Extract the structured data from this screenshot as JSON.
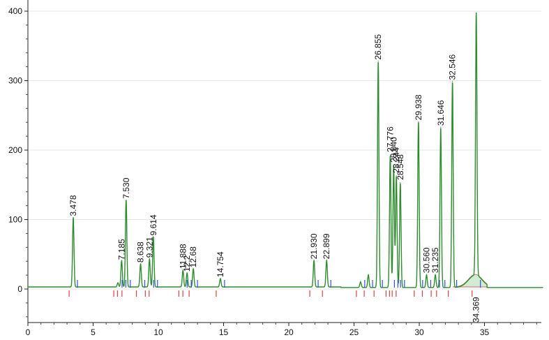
{
  "chart_data": {
    "type": "line",
    "title": "",
    "xlabel": "",
    "ylabel": "",
    "xlim": [
      0,
      39.5
    ],
    "ylim": [
      -45,
      410
    ],
    "x_ticks": [
      0,
      5,
      10,
      15,
      20,
      25,
      30,
      35
    ],
    "y_ticks": [
      0,
      100,
      200,
      300,
      400
    ],
    "x_tick_labels": [
      "0",
      "5",
      "10",
      "15",
      "20",
      "25",
      "30",
      "35"
    ],
    "y_tick_labels": [
      "0",
      "100",
      "200",
      "300",
      "400"
    ],
    "baseline": 3,
    "line_color": "#2e8b2e",
    "fill_color": "#cfe8cf",
    "peaks": [
      {
        "t": 3.478,
        "h": 100,
        "label": "3.478",
        "labeled": true
      },
      {
        "t": 6.9,
        "h": 6,
        "label": "",
        "labeled": false
      },
      {
        "t": 7.185,
        "h": 38,
        "label": "7.185",
        "labeled": true
      },
      {
        "t": 7.53,
        "h": 125,
        "label": "7.530",
        "labeled": true
      },
      {
        "t": 8.638,
        "h": 33,
        "label": "8.638",
        "labeled": true
      },
      {
        "t": 9.321,
        "h": 40,
        "label": "9.321",
        "labeled": true
      },
      {
        "t": 9.614,
        "h": 72,
        "label": "9.614",
        "labeled": true
      },
      {
        "t": 11.888,
        "h": 24,
        "label": "11.888",
        "labeled": true
      },
      {
        "t": 12.2,
        "h": 20,
        "label": "12.2",
        "labeled": true
      },
      {
        "t": 12.68,
        "h": 26,
        "label": "12.68",
        "labeled": true
      },
      {
        "t": 14.754,
        "h": 12,
        "label": "14.754",
        "labeled": true
      },
      {
        "t": 21.93,
        "h": 38,
        "label": "21.930",
        "labeled": true
      },
      {
        "t": 22.899,
        "h": 38,
        "label": "22.899",
        "labeled": true
      },
      {
        "t": 25.5,
        "h": 8,
        "label": "",
        "labeled": false
      },
      {
        "t": 26.1,
        "h": 18,
        "label": "",
        "labeled": false
      },
      {
        "t": 26.855,
        "h": 325,
        "label": "26.855",
        "labeled": true
      },
      {
        "t": 27.776,
        "h": 190,
        "label": "27.776",
        "labeled": true
      },
      {
        "t": 28.04,
        "h": 175,
        "label": "28.040",
        "labeled": true
      },
      {
        "t": 28.244,
        "h": 160,
        "label": "28.244",
        "labeled": true
      },
      {
        "t": 28.548,
        "h": 150,
        "label": "28.548",
        "labeled": true
      },
      {
        "t": 29.938,
        "h": 238,
        "label": "29.938",
        "labeled": true
      },
      {
        "t": 30.56,
        "h": 18,
        "label": "30.560",
        "labeled": true
      },
      {
        "t": 31.235,
        "h": 18,
        "label": "31.235",
        "labeled": true
      },
      {
        "t": 31.646,
        "h": 230,
        "label": "31.646",
        "labeled": true
      },
      {
        "t": 32.546,
        "h": 296,
        "label": "32.546",
        "labeled": true
      },
      {
        "t": 34.369,
        "h": 378,
        "label": "34.369",
        "labeled": true
      }
    ]
  }
}
